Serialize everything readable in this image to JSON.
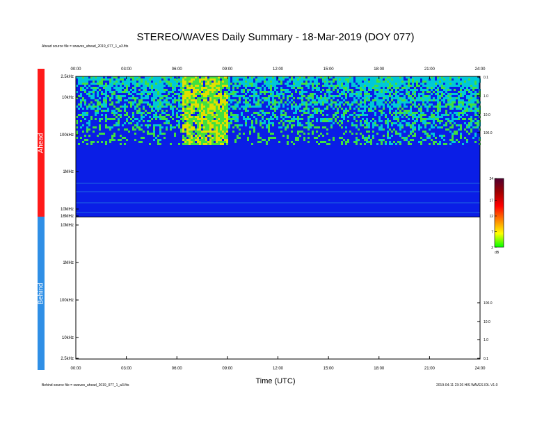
{
  "title": "STEREO/WAVES Daily Summary - 18-Mar-2019 (DOY 077)",
  "ahead_source": "Ahead source file = swaves_ahead_2019_077_1_a3.fits",
  "behind_source": "Behind source file = swaves_ahead_2019_077_1_a3.fits",
  "footer_right": "2019-04-11 23:26 HIS WAVES IDL V1.0",
  "panel_labels": {
    "ahead": "Ahead",
    "behind": "Behind"
  },
  "chart_data": {
    "type": "heatmap",
    "xlabel": "Time (UTC)",
    "x_ticks": [
      "00:00",
      "03:00",
      "06:00",
      "09:00",
      "12:00",
      "15:00",
      "18:00",
      "21:00",
      "24:00"
    ],
    "xlim": [
      0,
      24
    ],
    "panels": [
      {
        "name": "Ahead",
        "y_scale": "log",
        "y_ticks": [
          "2.5kHz",
          "10kHz",
          "100kHz",
          "1MHz",
          "10MHz",
          "16MHz"
        ],
        "right_ticks": [
          "0.1",
          "1.0",
          "10.0",
          "100.0"
        ],
        "has_data": true,
        "background_level_dB": 2,
        "bands": [
          {
            "freq_range": "2.5kHz-100kHz",
            "time_range_h": [
              0,
              24
            ],
            "level_dB": 8
          },
          {
            "freq_range": "10kHz-100kHz",
            "time_range_h": [
              4.5,
              5
            ],
            "level_dB": 9
          },
          {
            "freq_range": "10kHz-100kHz",
            "time_range_h": [
              16.5,
              24
            ],
            "level_dB": 9
          },
          {
            "freq_range": "2.5kHz-160kHz",
            "time_range_h": [
              6.3,
              9
            ],
            "level_dB": 14
          }
        ]
      },
      {
        "name": "Behind",
        "y_scale": "log",
        "y_ticks": [
          "10MHz",
          "1MHz",
          "100kHz",
          "10kHz",
          "2.5kHz"
        ],
        "right_ticks": [
          "100.0",
          "10.0",
          "1.0",
          "0.1"
        ],
        "has_data": false
      }
    ],
    "colorbar": {
      "label": "dB",
      "ticks": [
        "2",
        "7",
        "12",
        "17",
        "24"
      ],
      "range": [
        2,
        24
      ],
      "colors": [
        "#00ff00",
        "#ffff00",
        "#ff8000",
        "#ff0000",
        "#a00000",
        "#500030"
      ]
    },
    "colors": {
      "background": "#0a1ee6",
      "mid": "#00c8d8",
      "high": "#40e040",
      "burst": "#e0e000"
    }
  }
}
